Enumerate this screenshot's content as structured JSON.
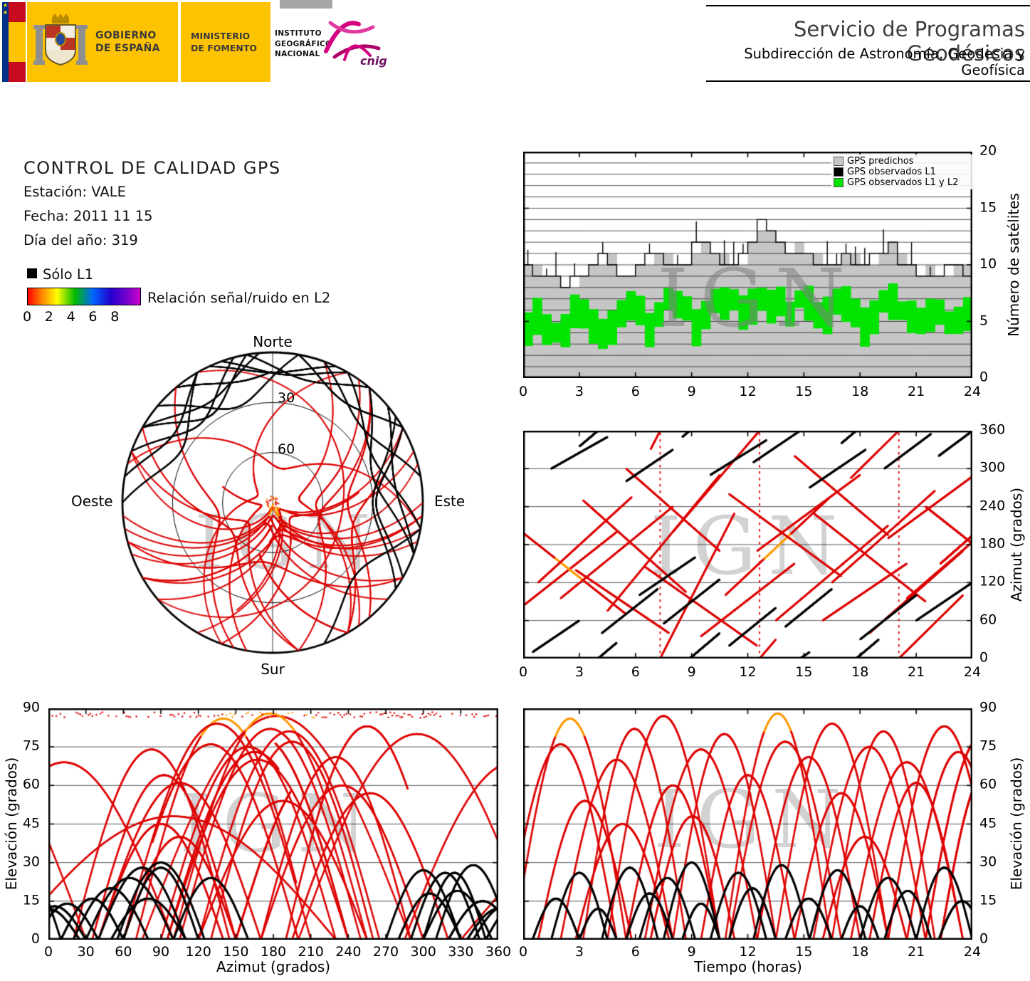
{
  "header": {
    "gobierno_lines": [
      "GOBIERNO",
      "DE ESPAÑA"
    ],
    "ministerio_lines": [
      "MINISTERIO",
      "DE FOMENTO"
    ],
    "instituto_lines": [
      "INSTITUTO",
      "GEOGRÁFICO",
      "NACIONAL"
    ],
    "cnig": "cnig",
    "service_title": "Servicio de Programas Geodésicos",
    "service_subtitle": "Subdirección de Astronomía, Geodesia y Geofísica"
  },
  "info": {
    "title": "CONTROL DE CALIDAD GPS",
    "station": "Estación: VALE",
    "date": "Fecha: 2011 11 15",
    "day_of_year": "Día del año: 319"
  },
  "snr_legend": {
    "solo_l1": "Sólo L1",
    "label": "Relación señal/ruido en L2",
    "ticks": [
      0,
      2,
      4,
      6,
      8
    ]
  },
  "skyplot": {
    "north": "Norte",
    "south": "Sur",
    "east": "Este",
    "west": "Oeste",
    "ring_labels": [
      "30",
      "60"
    ]
  },
  "watermark": "IGN",
  "colors": {
    "red": "#dd0000",
    "orange": "#ff9900",
    "green": "#00e400",
    "predicted_gray": "#c6c6c6",
    "header_yellow": "#fdc300",
    "magenta": "#d4007f"
  },
  "chart_data": [
    {
      "id": "sat_count",
      "type": "area",
      "title": "",
      "xlabel": "",
      "ylabel": "Número de satélites",
      "xlim": [
        0,
        24
      ],
      "ylim": [
        0,
        20
      ],
      "x_ticks": [
        0,
        3,
        6,
        9,
        12,
        15,
        18,
        21,
        24
      ],
      "y_ticks": [
        0,
        5,
        10,
        15,
        20
      ],
      "grid": "horizontal every 1 satellite",
      "legend_position": "top-right",
      "x_step_hours": 0.5,
      "legend": [
        {
          "label": "GPS predichos",
          "color": "#c6c6c6"
        },
        {
          "label": "GPS observados L1",
          "color": "#000000"
        },
        {
          "label": "GPS observados L1 y L2",
          "color": "#00e400"
        }
      ],
      "series": [
        {
          "name": "GPS predichos",
          "values": [
            10,
            10,
            9,
            9,
            8,
            8,
            9,
            10,
            10,
            11,
            9,
            9,
            10,
            10,
            11,
            11,
            10,
            10,
            11,
            12,
            11,
            11,
            10,
            10,
            12,
            13,
            13,
            12,
            11,
            12,
            11,
            11,
            10,
            10,
            11,
            11,
            10,
            10,
            11,
            12,
            11,
            10,
            9,
            10,
            9,
            9,
            10,
            10
          ]
        },
        {
          "name": "GPS observados L1",
          "values": [
            10,
            9,
            9,
            9,
            8,
            9,
            9,
            10,
            11,
            10,
            9,
            9,
            10,
            11,
            11,
            10,
            10,
            10,
            12,
            12,
            11,
            10,
            10,
            11,
            12,
            14,
            13,
            12,
            11,
            11,
            11,
            10,
            10,
            10,
            11,
            10,
            10,
            11,
            11,
            12,
            10,
            10,
            9,
            9,
            9,
            10,
            10,
            9
          ]
        },
        {
          "name": "GPS observados L1 y L2",
          "values": [
            6,
            7,
            6,
            5,
            6,
            7,
            7,
            6,
            5,
            6,
            7,
            8,
            7,
            6,
            7,
            8,
            8,
            7,
            6,
            7,
            8,
            8,
            8,
            7,
            8,
            8,
            8,
            8,
            7,
            8,
            8,
            7,
            7,
            8,
            8,
            7,
            6,
            7,
            8,
            8,
            7,
            7,
            6,
            7,
            7,
            6,
            6,
            7
          ]
        }
      ]
    },
    {
      "id": "az_time",
      "type": "scatter",
      "title": "",
      "xlabel": "",
      "ylabel": "Azimut (grados)",
      "xlim": [
        0,
        24
      ],
      "ylim": [
        0,
        360
      ],
      "x_ticks": [
        0,
        3,
        6,
        9,
        12,
        15,
        18,
        21,
        24
      ],
      "y_ticks": [
        0,
        60,
        120,
        180,
        240,
        300,
        360
      ],
      "grid": "horizontal every 60 degrees",
      "source": "passes"
    },
    {
      "id": "el_az",
      "type": "scatter",
      "title": "",
      "xlabel": "Azimut (grados)",
      "ylabel": "Elevación (grados)",
      "xlim": [
        0,
        360
      ],
      "ylim": [
        0,
        90
      ],
      "x_ticks": [
        0,
        30,
        60,
        90,
        120,
        150,
        180,
        210,
        240,
        270,
        300,
        330,
        360
      ],
      "y_ticks": [
        0,
        15,
        30,
        45,
        60,
        75,
        90
      ],
      "grid": "horizontal every 15 degrees",
      "source": "passes"
    },
    {
      "id": "el_time",
      "type": "scatter",
      "title": "",
      "xlabel": "Tiempo (horas)",
      "ylabel": "Elevación (grados)",
      "xlim": [
        0,
        24
      ],
      "ylim": [
        0,
        90
      ],
      "x_ticks": [
        0,
        3,
        6,
        9,
        12,
        15,
        18,
        21,
        24
      ],
      "y_ticks": [
        0,
        15,
        30,
        45,
        60,
        75,
        90
      ],
      "grid": "horizontal every 15 degrees",
      "source": "passes"
    }
  ],
  "passes": {
    "fields": [
      "t0_h",
      "dur_h",
      "peak_el_deg",
      "az_rise_deg",
      "az_set_deg",
      "dual_freq",
      "high_snr"
    ],
    "rows": [
      [
        -1.0,
        6.0,
        76,
        60,
        200,
        1,
        0
      ],
      [
        -0.5,
        6.0,
        86,
        210,
        70,
        1,
        1
      ],
      [
        0.8,
        5.0,
        54,
        120,
        255,
        1,
        0
      ],
      [
        2.0,
        6.0,
        70,
        95,
        240,
        1,
        0
      ],
      [
        2.8,
        5.0,
        45,
        140,
        40,
        1,
        0
      ],
      [
        3.2,
        5.5,
        82,
        250,
        105,
        1,
        0
      ],
      [
        4.5,
        6.0,
        87,
        75,
        290,
        1,
        0
      ],
      [
        5.5,
        5.0,
        60,
        300,
        170,
        1,
        0
      ],
      [
        6.5,
        6.0,
        74,
        145,
        20,
        1,
        0
      ],
      [
        6.8,
        4.5,
        48,
        330,
        590,
        1,
        0
      ],
      [
        8.0,
        5.5,
        80,
        200,
        390,
        1,
        0
      ],
      [
        9.5,
        5.0,
        64,
        35,
        150,
        1,
        0
      ],
      [
        10.8,
        5.6,
        88,
        100,
        255,
        1,
        1
      ],
      [
        11.0,
        6.0,
        77,
        260,
        130,
        1,
        0
      ],
      [
        12.5,
        5.5,
        71,
        170,
        290,
        1,
        0
      ],
      [
        13.5,
        6.0,
        84,
        60,
        210,
        1,
        0
      ],
      [
        14.5,
        5.0,
        57,
        320,
        195,
        1,
        0
      ],
      [
        15.5,
        6.0,
        75,
        230,
        90,
        1,
        0
      ],
      [
        16.0,
        4.5,
        40,
        60,
        150,
        1,
        0
      ],
      [
        16.5,
        5.5,
        81,
        120,
        265,
        1,
        0
      ],
      [
        17.5,
        6.0,
        69,
        285,
        460,
        1,
        0
      ],
      [
        18.5,
        5.0,
        61,
        40,
        170,
        1,
        0
      ],
      [
        19.5,
        6.0,
        83,
        190,
        320,
        1,
        0
      ],
      [
        20.5,
        5.5,
        73,
        95,
        235,
        1,
        0
      ],
      [
        21.5,
        6.0,
        79,
        240,
        100,
        1,
        0
      ],
      [
        22.3,
        5.0,
        66,
        150,
        280,
        1,
        0
      ],
      [
        0.5,
        2.5,
        16,
        10,
        60,
        0,
        0
      ],
      [
        1.5,
        3.0,
        26,
        300,
        350,
        0,
        0
      ],
      [
        3.0,
        2.0,
        12,
        335,
        385,
        0,
        0
      ],
      [
        4.2,
        3.0,
        28,
        40,
        110,
        0,
        0
      ],
      [
        5.5,
        2.5,
        18,
        280,
        330,
        0,
        0
      ],
      [
        6.2,
        3.0,
        24,
        100,
        160,
        0,
        0
      ],
      [
        7.5,
        3.0,
        30,
        55,
        125,
        0,
        0
      ],
      [
        8.5,
        2.0,
        14,
        350,
        400,
        0,
        0
      ],
      [
        10.0,
        3.0,
        26,
        290,
        345,
        0,
        0
      ],
      [
        11.0,
        2.5,
        20,
        20,
        80,
        0,
        0
      ],
      [
        12.3,
        3.0,
        29,
        310,
        370,
        0,
        0
      ],
      [
        14.0,
        2.5,
        16,
        50,
        110,
        0,
        0
      ],
      [
        15.3,
        3.0,
        27,
        270,
        330,
        0,
        0
      ],
      [
        17.0,
        2.0,
        13,
        340,
        390,
        0,
        0
      ],
      [
        18.0,
        3.0,
        24,
        30,
        100,
        0,
        0
      ],
      [
        19.3,
        2.5,
        19,
        300,
        355,
        0,
        0
      ],
      [
        21.0,
        3.0,
        28,
        60,
        120,
        0,
        0
      ],
      [
        22.2,
        2.5,
        15,
        320,
        375,
        0,
        0
      ]
    ]
  }
}
